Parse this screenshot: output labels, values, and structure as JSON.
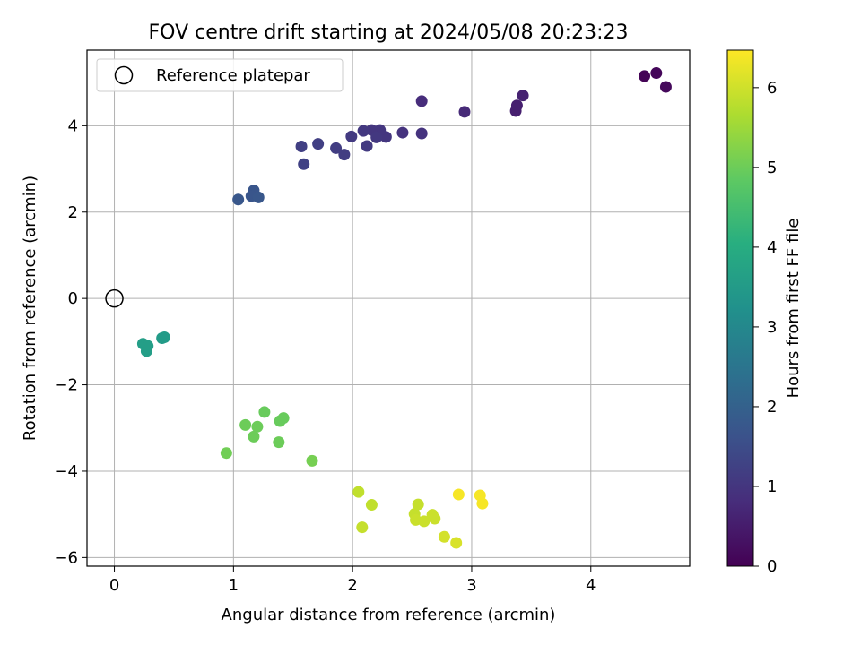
{
  "chart_data": {
    "type": "scatter",
    "title": "FOV centre drift starting at 2024/05/08 20:23:23",
    "xlabel": "Angular distance from reference (arcmin)",
    "ylabel": "Rotation from reference (arcmin)",
    "xlim": [
      -0.23,
      4.83
    ],
    "ylim": [
      -6.2,
      5.75
    ],
    "xticks": [
      0,
      1,
      2,
      3,
      4
    ],
    "yticks": [
      -6,
      -4,
      -2,
      0,
      2,
      4
    ],
    "grid": true,
    "legend": {
      "position": "top-left",
      "entries": [
        "Reference platepar"
      ]
    },
    "reference_point": {
      "x": 0,
      "y": 0
    },
    "colorbar": {
      "label": "Hours from first FF file",
      "range": [
        0,
        6.47
      ],
      "ticks": [
        0,
        1,
        2,
        3,
        4,
        5,
        6
      ],
      "colormap": "viridis"
    },
    "points": [
      {
        "x": 4.45,
        "y": 5.15,
        "c": 0.05
      },
      {
        "x": 4.55,
        "y": 5.22,
        "c": 0.1
      },
      {
        "x": 4.63,
        "y": 4.9,
        "c": 0.15
      },
      {
        "x": 3.37,
        "y": 4.34,
        "c": 0.55
      },
      {
        "x": 3.38,
        "y": 4.47,
        "c": 0.55
      },
      {
        "x": 3.43,
        "y": 4.7,
        "c": 0.6
      },
      {
        "x": 2.94,
        "y": 4.32,
        "c": 0.75
      },
      {
        "x": 2.58,
        "y": 4.57,
        "c": 0.8
      },
      {
        "x": 2.58,
        "y": 3.82,
        "c": 0.95
      },
      {
        "x": 2.42,
        "y": 3.84,
        "c": 0.95
      },
      {
        "x": 2.28,
        "y": 3.74,
        "c": 1.0
      },
      {
        "x": 2.23,
        "y": 3.9,
        "c": 1.0
      },
      {
        "x": 2.16,
        "y": 3.9,
        "c": 1.0
      },
      {
        "x": 2.09,
        "y": 3.88,
        "c": 1.05
      },
      {
        "x": 2.2,
        "y": 3.73,
        "c": 1.05
      },
      {
        "x": 2.12,
        "y": 3.53,
        "c": 1.1
      },
      {
        "x": 1.99,
        "y": 3.75,
        "c": 1.1
      },
      {
        "x": 1.86,
        "y": 3.48,
        "c": 1.15
      },
      {
        "x": 1.93,
        "y": 3.33,
        "c": 1.15
      },
      {
        "x": 1.71,
        "y": 3.58,
        "c": 1.2
      },
      {
        "x": 1.57,
        "y": 3.52,
        "c": 1.2
      },
      {
        "x": 1.59,
        "y": 3.11,
        "c": 1.25
      },
      {
        "x": 1.17,
        "y": 2.5,
        "c": 1.7
      },
      {
        "x": 1.15,
        "y": 2.37,
        "c": 1.7
      },
      {
        "x": 1.21,
        "y": 2.34,
        "c": 1.75
      },
      {
        "x": 1.04,
        "y": 2.29,
        "c": 1.75
      },
      {
        "x": 0.42,
        "y": -0.9,
        "c": 3.5
      },
      {
        "x": 0.4,
        "y": -0.92,
        "c": 3.5
      },
      {
        "x": 0.24,
        "y": -1.05,
        "c": 3.6
      },
      {
        "x": 0.28,
        "y": -1.1,
        "c": 3.6
      },
      {
        "x": 0.27,
        "y": -1.22,
        "c": 3.6
      },
      {
        "x": 1.26,
        "y": -2.63,
        "c": 4.95
      },
      {
        "x": 1.42,
        "y": -2.77,
        "c": 4.95
      },
      {
        "x": 1.39,
        "y": -2.84,
        "c": 4.95
      },
      {
        "x": 1.1,
        "y": -2.93,
        "c": 5.0
      },
      {
        "x": 1.2,
        "y": -2.97,
        "c": 5.0
      },
      {
        "x": 1.17,
        "y": -3.2,
        "c": 5.0
      },
      {
        "x": 1.38,
        "y": -3.33,
        "c": 5.0
      },
      {
        "x": 0.94,
        "y": -3.58,
        "c": 5.05
      },
      {
        "x": 1.66,
        "y": -3.76,
        "c": 5.1
      },
      {
        "x": 2.05,
        "y": -4.48,
        "c": 5.85
      },
      {
        "x": 2.16,
        "y": -4.78,
        "c": 5.85
      },
      {
        "x": 2.55,
        "y": -4.77,
        "c": 5.9
      },
      {
        "x": 2.52,
        "y": -4.99,
        "c": 5.9
      },
      {
        "x": 2.67,
        "y": -5.01,
        "c": 5.95
      },
      {
        "x": 2.53,
        "y": -5.13,
        "c": 5.95
      },
      {
        "x": 2.6,
        "y": -5.16,
        "c": 5.95
      },
      {
        "x": 2.69,
        "y": -5.1,
        "c": 5.95
      },
      {
        "x": 2.08,
        "y": -5.3,
        "c": 5.9
      },
      {
        "x": 2.77,
        "y": -5.52,
        "c": 6.05
      },
      {
        "x": 2.87,
        "y": -5.66,
        "c": 6.1
      },
      {
        "x": 2.89,
        "y": -4.54,
        "c": 6.4
      },
      {
        "x": 3.07,
        "y": -4.56,
        "c": 6.4
      },
      {
        "x": 3.09,
        "y": -4.75,
        "c": 6.4
      }
    ]
  }
}
